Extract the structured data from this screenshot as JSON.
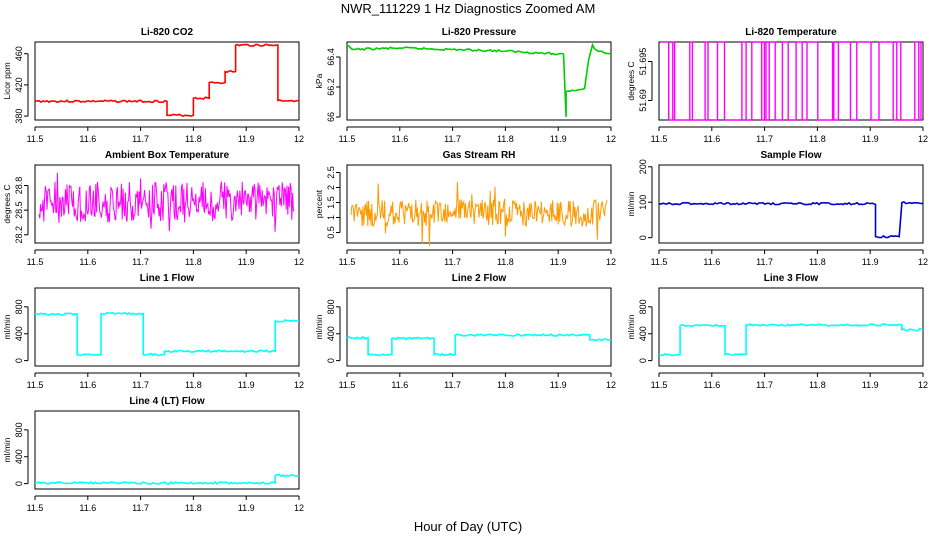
{
  "title": "NWR_111229  1 Hz Diagnostics Zoomed AM",
  "xlabel": "Hour of Day (UTC)",
  "chart_data": [
    {
      "type": "line",
      "title": "Li-820 CO2",
      "ylabel": "Licor ppm",
      "color": "#ff0000",
      "xlim": [
        11.5,
        12.0
      ],
      "ylim": [
        375,
        475
      ],
      "xticks": [
        11.5,
        11.6,
        11.7,
        11.8,
        11.9,
        12.0
      ],
      "yticks": [
        380,
        420,
        460
      ],
      "x": [
        11.5,
        11.75,
        11.75,
        11.8,
        11.8,
        11.83,
        11.83,
        11.86,
        11.86,
        11.88,
        11.88,
        11.96,
        11.96,
        12.0
      ],
      "y": [
        399,
        399,
        381,
        381,
        403,
        403,
        423,
        423,
        437,
        437,
        471,
        471,
        400,
        400
      ]
    },
    {
      "type": "line",
      "title": "Li-820 Pressure",
      "ylabel": "kPa",
      "color": "#00cc00",
      "xlim": [
        11.5,
        12.0
      ],
      "ylim": [
        65.98,
        66.5
      ],
      "xticks": [
        11.5,
        11.6,
        11.7,
        11.8,
        11.9,
        12.0
      ],
      "yticks": [
        66.0,
        66.2,
        66.4
      ],
      "x": [
        11.5,
        11.51,
        11.6,
        11.7,
        11.8,
        11.9,
        11.91,
        11.915,
        11.915,
        11.95,
        11.965,
        11.975,
        12.0
      ],
      "y": [
        66.48,
        66.45,
        66.46,
        66.45,
        66.44,
        66.42,
        66.42,
        66.0,
        66.17,
        66.19,
        66.48,
        66.44,
        66.42
      ]
    },
    {
      "type": "line",
      "title": "Li-820 Temperature",
      "ylabel": "degrees C",
      "color": "#ff00ff",
      "xlim": [
        11.5,
        12.0
      ],
      "ylim": [
        51.6875,
        51.6975
      ],
      "xticks": [
        11.5,
        11.6,
        11.7,
        11.8,
        11.9,
        12.0
      ],
      "yticks": [
        51.69,
        51.695
      ],
      "band": [
        51.6875,
        51.6975
      ]
    },
    {
      "type": "line",
      "title": "Ambient Box Temperature",
      "ylabel": "degrees C",
      "color": "#ff00ff",
      "xlim": [
        11.5,
        12.0
      ],
      "ylim": [
        28.1,
        29.05
      ],
      "xticks": [
        11.5,
        11.6,
        11.7,
        11.8,
        11.9,
        12.0
      ],
      "yticks": [
        28.2,
        28.5,
        28.8
      ],
      "band": [
        28.35,
        28.85
      ]
    },
    {
      "type": "line",
      "title": "Gas Stream RH",
      "ylabel": "percent",
      "color": "#ff9900",
      "xlim": [
        11.5,
        12.0
      ],
      "ylim": [
        0.15,
        2.75
      ],
      "xticks": [
        11.5,
        11.6,
        11.7,
        11.8,
        11.9,
        12.0
      ],
      "yticks": [
        0.5,
        1.0,
        1.5,
        2.0,
        2.5
      ],
      "band": [
        0.7,
        1.6
      ]
    },
    {
      "type": "line",
      "title": "Sample Flow",
      "ylabel": "ml/min",
      "color": "#0000cc",
      "xlim": [
        11.5,
        12.0
      ],
      "ylim": [
        -15,
        205
      ],
      "xticks": [
        11.5,
        11.6,
        11.7,
        11.8,
        11.9,
        12.0
      ],
      "yticks": [
        0,
        100,
        200
      ],
      "x": [
        11.5,
        11.9,
        11.91,
        11.91,
        11.955,
        11.96,
        12.0
      ],
      "y": [
        96,
        96,
        94,
        3,
        3,
        99,
        96
      ]
    },
    {
      "type": "line",
      "title": "Line 1 Flow",
      "ylabel": "ml/min",
      "color": "#00ffff",
      "xlim": [
        11.5,
        12.0
      ],
      "ylim": [
        -80,
        1080
      ],
      "xticks": [
        11.5,
        11.6,
        11.7,
        11.8,
        11.9,
        12.0
      ],
      "yticks": [
        0,
        400,
        800
      ],
      "x": [
        11.5,
        11.58,
        11.58,
        11.625,
        11.625,
        11.705,
        11.705,
        11.745,
        11.745,
        11.955,
        11.955,
        12.0
      ],
      "y": [
        690,
        690,
        90,
        90,
        700,
        700,
        90,
        90,
        140,
        140,
        590,
        590
      ]
    },
    {
      "type": "line",
      "title": "Line 2 Flow",
      "ylabel": "ml/min",
      "color": "#00ffff",
      "xlim": [
        11.5,
        12.0
      ],
      "ylim": [
        -80,
        1080
      ],
      "xticks": [
        11.5,
        11.6,
        11.7,
        11.8,
        11.9,
        12.0
      ],
      "yticks": [
        0,
        400,
        800
      ],
      "x": [
        11.5,
        11.54,
        11.54,
        11.585,
        11.585,
        11.665,
        11.665,
        11.705,
        11.705,
        11.96,
        11.96,
        12.0
      ],
      "y": [
        340,
        340,
        90,
        90,
        330,
        330,
        90,
        90,
        380,
        380,
        310,
        310
      ]
    },
    {
      "type": "line",
      "title": "Line 3 Flow",
      "ylabel": "ml/min",
      "color": "#00ffff",
      "xlim": [
        11.5,
        12.0
      ],
      "ylim": [
        -80,
        1080
      ],
      "xticks": [
        11.5,
        11.6,
        11.7,
        11.8,
        11.9,
        12.0
      ],
      "yticks": [
        0,
        400,
        800
      ],
      "x": [
        11.5,
        11.54,
        11.54,
        11.625,
        11.625,
        11.665,
        11.665,
        11.96,
        11.96,
        12.0
      ],
      "y": [
        90,
        90,
        520,
        520,
        90,
        90,
        530,
        530,
        460,
        460
      ]
    },
    {
      "type": "line",
      "title": "Line 4 (LT) Flow",
      "ylabel": "ml/min",
      "color": "#00ffff",
      "xlim": [
        11.5,
        12.0
      ],
      "ylim": [
        -80,
        1080
      ],
      "xticks": [
        11.5,
        11.6,
        11.7,
        11.8,
        11.9,
        12.0
      ],
      "yticks": [
        0,
        400,
        800
      ],
      "x": [
        11.5,
        11.955,
        11.955,
        12.0
      ],
      "y": [
        10,
        10,
        120,
        120
      ]
    }
  ]
}
